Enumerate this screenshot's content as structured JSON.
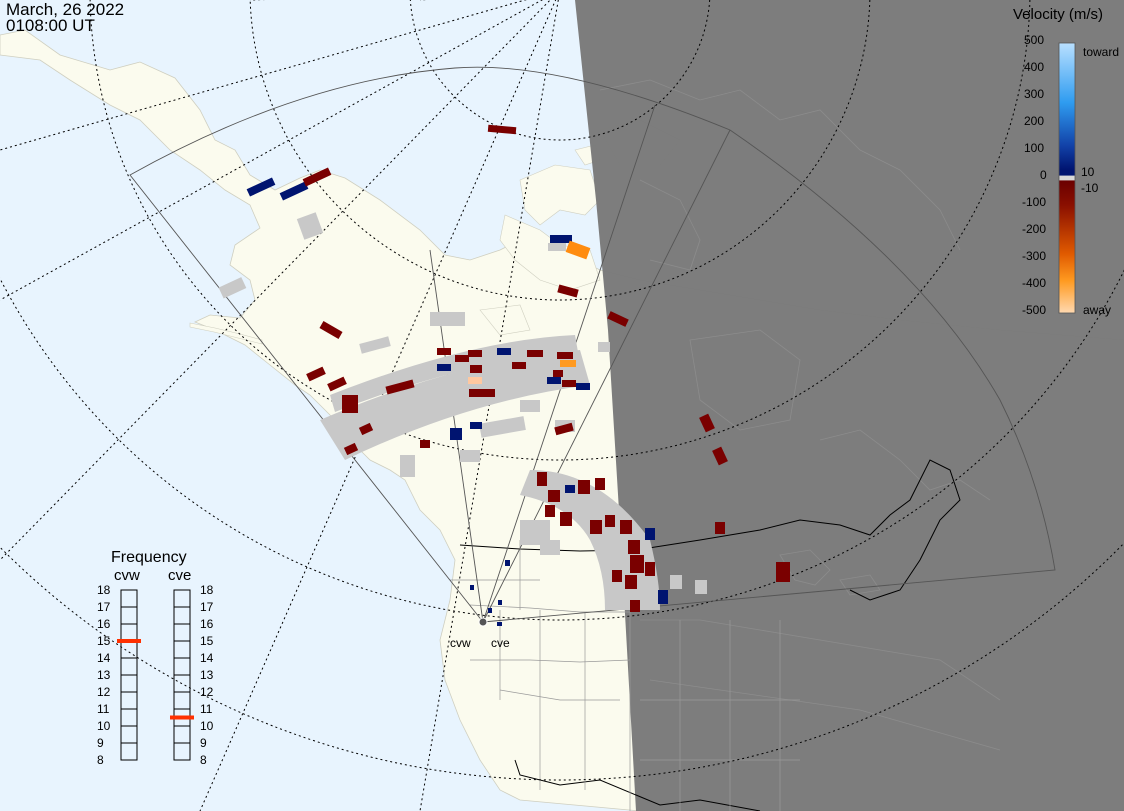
{
  "header": {
    "date": "March, 26 2022",
    "time": "0108:00 UT"
  },
  "velocity_scale": {
    "title": "Velocity (m/s)",
    "ticks": [
      "500",
      "400",
      "300",
      "200",
      "100",
      "0",
      "-100",
      "-200",
      "-300",
      "-400",
      "-500"
    ],
    "inner_ticks": [
      "10",
      "-10"
    ],
    "toward_label": "toward",
    "away_label": "away",
    "colors": [
      "#b9e0ff",
      "#7cc7ff",
      "#2f9cf0",
      "#1f6fd0",
      "#1242a8",
      "#001470",
      "#ffffff",
      "#6b0000",
      "#8a0f00",
      "#b53000",
      "#e05a00",
      "#ff9a20",
      "#ffd9b0"
    ]
  },
  "frequency": {
    "title": "Frequency",
    "radars": [
      "cvw",
      "cve"
    ],
    "levels": [
      "18",
      "17",
      "16",
      "15",
      "14",
      "13",
      "12",
      "11",
      "10",
      "9",
      "8"
    ],
    "cvw_mhz": 15,
    "cve_mhz": 10.5,
    "marker_color": "#ff3000"
  },
  "site_labels": [
    "cvw",
    "cve"
  ],
  "colors": {
    "ocean": "#e8f4fe",
    "land": "#fbfbee",
    "night": "#7a7a7a",
    "ground_scatter": "#c8c8c8"
  }
}
